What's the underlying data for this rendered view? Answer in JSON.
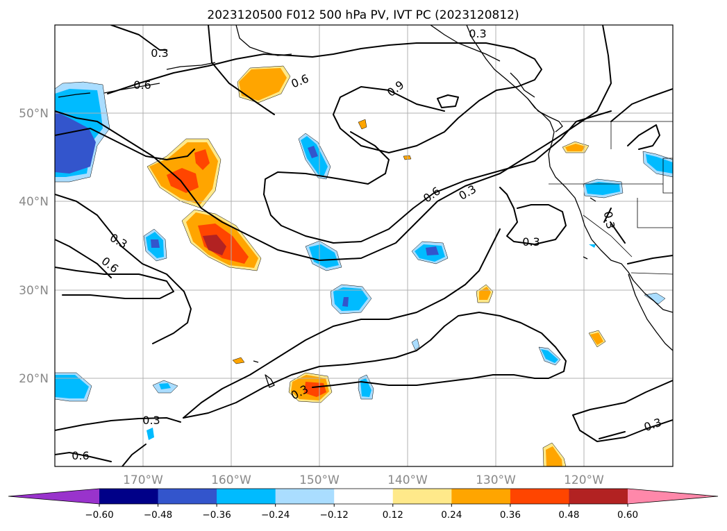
{
  "title": "2023120500 F012 500 hPa PV, IVT PC (2023120812)",
  "lon_ticks": [
    "170°W",
    "160°W",
    "150°W",
    "140°W",
    "130°W",
    "120°W"
  ],
  "lat_ticks": [
    "50°N",
    "40°N",
    "30°N",
    "20°N"
  ],
  "colorbar": {
    "ticks": [
      "−0.60",
      "−0.48",
      "−0.36",
      "−0.24",
      "−0.12",
      "0.12",
      "0.24",
      "0.36",
      "0.48",
      "0.60"
    ],
    "colors": [
      "#9933cc",
      "#000088",
      "#3355cc",
      "#00bbff",
      "#aaddff",
      "#ffffff",
      "#ffe98a",
      "#ffa500",
      "#ff4500",
      "#b22222",
      "#ff88aa"
    ]
  },
  "contour_labels": [
    "0.3",
    "0.6",
    "0.6",
    "0.9",
    "0.6",
    "0.3",
    "0.3",
    "0.3",
    "0.6",
    "0.3",
    "0.3",
    "0.3",
    "0.6",
    "0.3"
  ],
  "chart_data": {
    "type": "map",
    "projection": "platecarree",
    "lon_range": [
      -180,
      -110
    ],
    "lat_range": [
      10,
      60
    ],
    "filled_field": "IVT PC",
    "contour_field": "500 hPa PV",
    "contour_levels": [
      0.3,
      0.6,
      0.9
    ],
    "fill_levels": [
      -0.6,
      -0.48,
      -0.36,
      -0.24,
      -0.12,
      0.12,
      0.24,
      0.36,
      0.48,
      0.6
    ],
    "grid": true
  }
}
